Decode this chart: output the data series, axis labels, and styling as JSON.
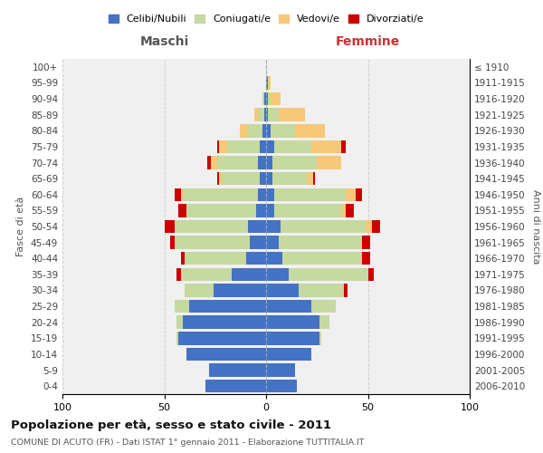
{
  "age_groups": [
    "0-4",
    "5-9",
    "10-14",
    "15-19",
    "20-24",
    "25-29",
    "30-34",
    "35-39",
    "40-44",
    "45-49",
    "50-54",
    "55-59",
    "60-64",
    "65-69",
    "70-74",
    "75-79",
    "80-84",
    "85-89",
    "90-94",
    "95-99",
    "100+"
  ],
  "birth_years": [
    "2006-2010",
    "2001-2005",
    "1996-2000",
    "1991-1995",
    "1986-1990",
    "1981-1985",
    "1976-1980",
    "1971-1975",
    "1966-1970",
    "1961-1965",
    "1956-1960",
    "1951-1955",
    "1946-1950",
    "1941-1945",
    "1936-1940",
    "1931-1935",
    "1926-1930",
    "1921-1925",
    "1916-1920",
    "1911-1915",
    "≤ 1910"
  ],
  "maschi": {
    "celibi": [
      30,
      28,
      39,
      43,
      41,
      38,
      26,
      17,
      10,
      8,
      9,
      5,
      4,
      3,
      4,
      3,
      2,
      1,
      1,
      0,
      0
    ],
    "coniugati": [
      0,
      0,
      0,
      1,
      3,
      7,
      14,
      25,
      30,
      37,
      36,
      34,
      37,
      19,
      20,
      16,
      7,
      3,
      1,
      0,
      0
    ],
    "vedovi": [
      0,
      0,
      0,
      0,
      0,
      0,
      0,
      0,
      0,
      0,
      0,
      0,
      1,
      1,
      3,
      4,
      4,
      2,
      0,
      0,
      0
    ],
    "divorziati": [
      0,
      0,
      0,
      0,
      0,
      0,
      0,
      2,
      2,
      2,
      5,
      4,
      3,
      1,
      2,
      1,
      0,
      0,
      0,
      0,
      0
    ]
  },
  "femmine": {
    "nubili": [
      15,
      14,
      22,
      26,
      26,
      22,
      16,
      11,
      8,
      6,
      7,
      4,
      4,
      3,
      3,
      4,
      2,
      1,
      1,
      1,
      0
    ],
    "coniugate": [
      0,
      0,
      0,
      1,
      5,
      12,
      22,
      39,
      39,
      41,
      42,
      33,
      35,
      17,
      22,
      18,
      12,
      5,
      1,
      0,
      0
    ],
    "vedove": [
      0,
      0,
      0,
      0,
      0,
      0,
      0,
      0,
      0,
      0,
      3,
      2,
      5,
      3,
      12,
      15,
      15,
      13,
      5,
      1,
      0
    ],
    "divorziate": [
      0,
      0,
      0,
      0,
      0,
      0,
      2,
      3,
      4,
      4,
      4,
      4,
      3,
      1,
      0,
      2,
      0,
      0,
      0,
      0,
      0
    ]
  },
  "colors": {
    "celibi_nubili": "#4472c4",
    "coniugati": "#c5d9a0",
    "vedovi": "#f5c87a",
    "divorziati": "#cc0000"
  },
  "title": "Popolazione per età, sesso e stato civile - 2011",
  "subtitle": "COMUNE DI ACUTO (FR) - Dati ISTAT 1° gennaio 2011 - Elaborazione TUTTITALIA.IT",
  "xlabel_left": "Maschi",
  "xlabel_right": "Femmine",
  "ylabel_left": "Fasce di età",
  "ylabel_right": "Anni di nascita",
  "xlim": 100,
  "legend_labels": [
    "Celibi/Nubili",
    "Coniugati/e",
    "Vedovi/e",
    "Divorziati/e"
  ],
  "bg_color": "#ffffff",
  "plot_bg_color": "#f0f0f0"
}
